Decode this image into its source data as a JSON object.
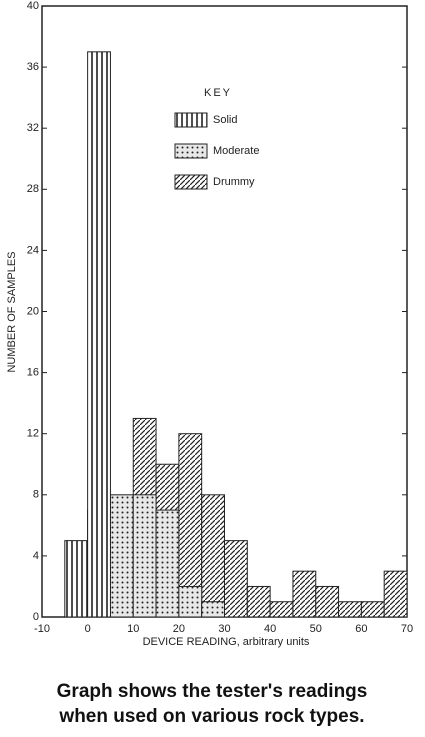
{
  "chart_data": {
    "type": "histogram",
    "xlabel": "DEVICE READING, arbitrary units",
    "ylabel": "NUMBER OF SAMPLES",
    "legend_title": "KEY",
    "caption": [
      "Graph shows the tester's readings",
      "when used on various rock types."
    ],
    "bins": [
      -5,
      0,
      5,
      10,
      15,
      20,
      25,
      30,
      35,
      40,
      45,
      50,
      55,
      60,
      65,
      70
    ],
    "series": [
      {
        "name": "Drummy",
        "color": "#222222",
        "hatch": "diagonal",
        "values": [
          0,
          7,
          5,
          13,
          10,
          12,
          8,
          5,
          2,
          1,
          3,
          2,
          1,
          1,
          3
        ]
      },
      {
        "name": "Moderate",
        "color": "#222222",
        "hatch": "dots",
        "values": [
          0,
          0,
          8,
          8,
          7,
          2,
          1,
          0,
          0,
          0,
          0,
          0,
          0,
          0,
          0
        ]
      },
      {
        "name": "Solid",
        "color": "#222222",
        "hatch": "vertical",
        "values": [
          5,
          37,
          0,
          0,
          0,
          0,
          0,
          0,
          0,
          0,
          0,
          0,
          0,
          0,
          0
        ]
      }
    ],
    "xlim": [
      -10,
      70
    ],
    "ylim": [
      0,
      40
    ],
    "xticks": [
      -10,
      0,
      10,
      20,
      30,
      40,
      50,
      60,
      70
    ],
    "yticks": [
      0,
      4,
      8,
      12,
      16,
      20,
      24,
      28,
      32,
      36,
      40
    ]
  }
}
